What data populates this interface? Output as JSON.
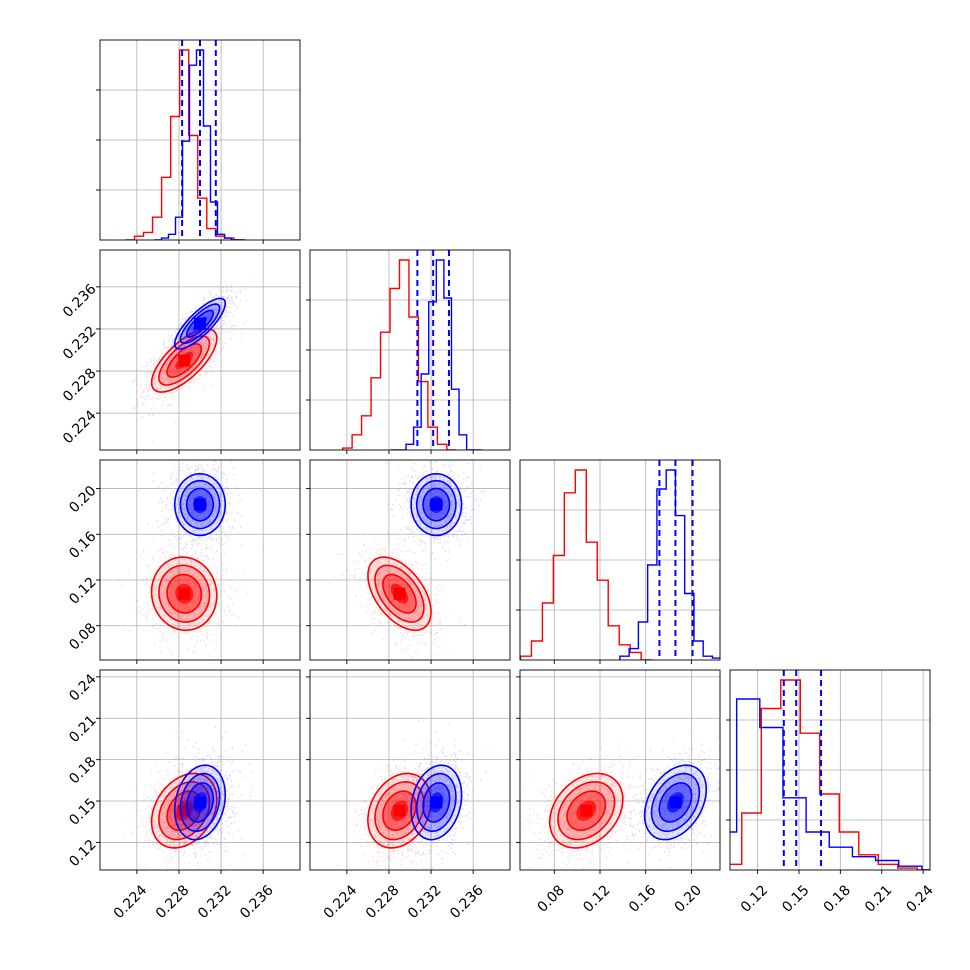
{
  "chart_data": {
    "type": "corner",
    "grid": true,
    "legend": "none",
    "parameters": [
      {
        "range": [
          0.2205,
          0.2395
        ],
        "ticks": [
          "0.224",
          "0.228",
          "0.232",
          "0.236"
        ]
      },
      {
        "range": [
          0.2205,
          0.2395
        ],
        "ticks": [
          "0.224",
          "0.228",
          "0.232",
          "0.236"
        ]
      },
      {
        "range": [
          0.05,
          0.225
        ],
        "ticks": [
          "0.08",
          "0.12",
          "0.16",
          "0.20"
        ]
      },
      {
        "range": [
          0.1,
          0.245
        ],
        "ticks": [
          "0.12",
          "0.15",
          "0.18",
          "0.21",
          "0.24"
        ]
      }
    ],
    "series": [
      {
        "color": "#ff0000",
        "means": [
          0.2285,
          0.229,
          0.108,
          0.143
        ],
        "sds": [
          0.00155,
          0.0015,
          0.016,
          0.0135
        ],
        "correlations": [
          [
            0,
            1,
            0.7
          ],
          [
            0,
            2,
            -0.05
          ],
          [
            0,
            3,
            0.3
          ],
          [
            1,
            2,
            -0.5
          ],
          [
            1,
            3,
            0.25
          ],
          [
            2,
            3,
            0.3
          ]
        ],
        "hist": [
          [
            0.0,
            0.02,
            0.04,
            0.12,
            0.33,
            0.65,
            1.0,
            0.55,
            0.22,
            0.06,
            0.02,
            0.01,
            0.0
          ],
          [
            0.01,
            0.08,
            0.18,
            0.38,
            0.62,
            0.85,
            1.0,
            0.7,
            0.36,
            0.12,
            0.03,
            0.0
          ],
          [
            0.02,
            0.1,
            0.3,
            0.55,
            0.88,
            1.0,
            0.62,
            0.42,
            0.18,
            0.08,
            0.04,
            0.0
          ],
          [
            0.03,
            0.3,
            0.85,
            1.0,
            0.72,
            0.4,
            0.2,
            0.08,
            0.03,
            0.01,
            0.0
          ]
        ]
      },
      {
        "color": "#0000ff",
        "means": [
          0.23,
          0.2325,
          0.186,
          0.149
        ],
        "sds": [
          0.0012,
          0.0012,
          0.0135,
          0.0135
        ],
        "correlations": [
          [
            0,
            1,
            0.8
          ],
          [
            0,
            2,
            0.0
          ],
          [
            0,
            3,
            0.2
          ],
          [
            1,
            2,
            0.0
          ],
          [
            1,
            3,
            0.2
          ],
          [
            2,
            3,
            0.35
          ]
        ],
        "hist": [
          [
            0.0,
            0.01,
            0.03,
            0.12,
            0.52,
            0.92,
            1.0,
            0.6,
            0.2,
            0.03,
            0.01,
            0.0,
            0.0
          ],
          [
            0.0,
            0.0,
            0.03,
            0.12,
            0.4,
            0.78,
            1.0,
            0.8,
            0.32,
            0.08,
            0.0,
            0.0
          ],
          [
            0.02,
            0.06,
            0.2,
            0.5,
            0.9,
            1.0,
            0.76,
            0.35,
            0.1,
            0.02,
            0.01,
            0.0
          ],
          [
            0.02,
            0.2,
            0.9,
            0.75,
            0.38,
            0.2,
            0.12,
            0.07,
            0.05,
            0.02,
            0.0
          ]
        ]
      }
    ],
    "quantile_lines": {
      "color": "#0000ff",
      "style": "dashed",
      "values": [
        [
          0.2283,
          0.23,
          0.2315
        ],
        [
          0.2307,
          0.2322,
          0.2337
        ],
        [
          0.172,
          0.186,
          0.201
        ],
        [
          0.139,
          0.148,
          0.166
        ]
      ]
    }
  }
}
